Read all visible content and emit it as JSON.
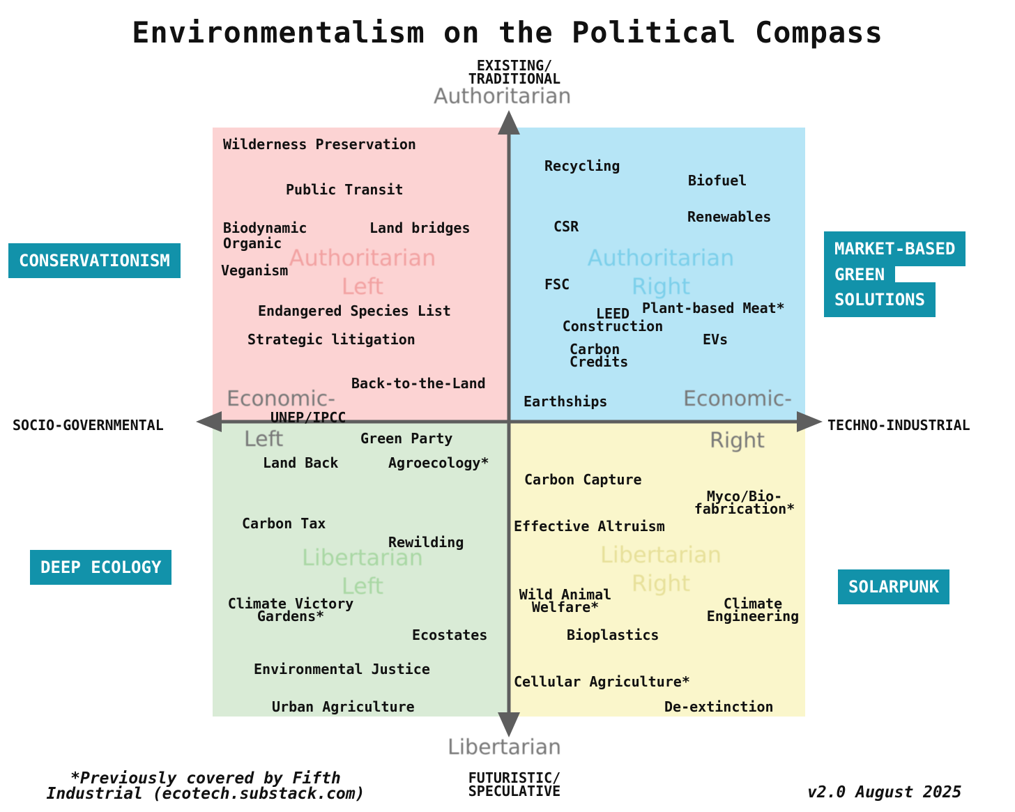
{
  "title": "Environmentalism on the Political Compass",
  "axes": {
    "top_label": [
      "EXISTING/",
      "TRADITIONAL"
    ],
    "bottom_label": [
      "FUTURISTIC/",
      "SPECULATIVE"
    ],
    "left_label": "SOCIO-GOVERNMENTAL",
    "right_label": "TECHNO-INDUSTRIAL",
    "top_word": "Authoritarian",
    "bottom_word": "Libertarian",
    "econ_left": [
      "Economic-",
      "Left"
    ],
    "econ_right": [
      "Economic-",
      "Right"
    ]
  },
  "quadrants": {
    "auth_left": {
      "color": "#fcd3d3",
      "watermark": [
        "Authoritarian",
        "Left"
      ]
    },
    "auth_right": {
      "color": "#b6e5f6",
      "watermark": [
        "Authoritarian",
        "Right"
      ]
    },
    "lib_left": {
      "color": "#d9ebd6",
      "watermark": [
        "Libertarian",
        "Left"
      ]
    },
    "lib_right": {
      "color": "#faf6cb",
      "watermark": [
        "Libertarian",
        "Right"
      ]
    }
  },
  "badges": {
    "conservationism": "CONSERVATIONISM",
    "market_based": [
      "MARKET-BASED",
      "GREEN",
      "SOLUTIONS"
    ],
    "deep_ecology": "DEEP ECOLOGY",
    "solarpunk": "SOLARPUNK",
    "color": "#1292aa"
  },
  "items": {
    "wilderness_preservation": "Wilderness Preservation",
    "public_transit": "Public Transit",
    "biodynamic_organic": [
      "Biodynamic",
      "Organic"
    ],
    "land_bridges": "Land bridges",
    "veganism": "Veganism",
    "endangered_species": "Endangered Species List",
    "strategic_litigation": "Strategic litigation",
    "back_to_land": "Back-to-the-Land",
    "unep_ipcc": "UNEP/IPCC",
    "recycling": "Recycling",
    "biofuel": "Biofuel",
    "renewables": "Renewables",
    "csr": "CSR",
    "fsc": "FSC",
    "leed": [
      "LEED",
      "Construction"
    ],
    "plant_meat": "Plant-based Meat*",
    "evs": "EVs",
    "carbon_credits": [
      "Carbon",
      "Credits"
    ],
    "earthships": "Earthships",
    "green_party": "Green Party",
    "land_back": "Land Back",
    "agroecology": "Agroecology*",
    "carbon_tax": "Carbon Tax",
    "rewilding": "Rewilding",
    "climate_victory": [
      "Climate Victory",
      "Gardens*"
    ],
    "ecostates": "Ecostates",
    "environmental_justice": "Environmental Justice",
    "urban_agriculture": "Urban Agriculture",
    "carbon_capture": "Carbon Capture",
    "myco": [
      "Myco/Bio-",
      "fabrication*"
    ],
    "effective_altruism": "Effective Altruism",
    "wild_animal": [
      "Wild Animal",
      "Welfare*"
    ],
    "climate_engineering": [
      "Climate",
      "Engineering"
    ],
    "bioplastics": "Bioplastics",
    "cellular_agriculture": "Cellular Agriculture*",
    "de_extinction": "De-extinction"
  },
  "footnote": [
    "*Previously covered by Fifth",
    "Industrial (ecotech.substack.com)"
  ],
  "version": "v2.0 August 2025"
}
